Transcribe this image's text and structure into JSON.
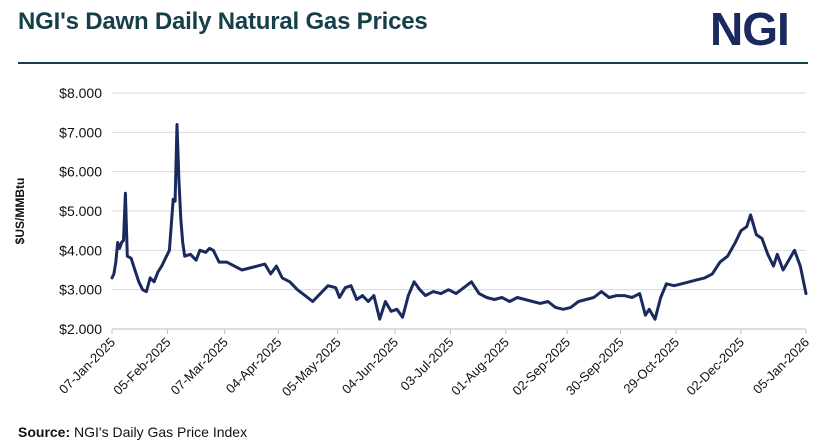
{
  "header": {
    "title": "NGI's Dawn Daily Natural Gas Prices",
    "logo_text": "NGI"
  },
  "footer": {
    "source_label": "Source:",
    "source_text": "NGI's Daily Gas Price Index"
  },
  "colors": {
    "title": "#163f4a",
    "logo": "#1a2a5e",
    "line": "#1a2a5e",
    "grid": "#d9d9d9"
  },
  "chart_data": {
    "type": "line",
    "title": "NGI's Dawn Daily Natural Gas Prices",
    "ylabel": "$US/MMBtu",
    "xlabel": "",
    "ylim": [
      2.0,
      8.0
    ],
    "grid": true,
    "y_ticks": [
      "$2.000",
      "$3.000",
      "$4.000",
      "$5.000",
      "$6.000",
      "$7.000",
      "$8.000"
    ],
    "y_tick_values": [
      2,
      3,
      4,
      5,
      6,
      7,
      8
    ],
    "x_ticks": [
      "07-Jan-2025",
      "05-Feb-2025",
      "07-Mar-2025",
      "04-Apr-2025",
      "05-May-2025",
      "04-Jun-2025",
      "03-Jul-2025",
      "01-Aug-2025",
      "02-Sep-2025",
      "30-Sep-2025",
      "29-Oct-2025",
      "02-Dec-2025",
      "05-Jan-2026"
    ],
    "x_tick_dates": [
      "2025-01-07",
      "2025-02-05",
      "2025-03-07",
      "2025-04-04",
      "2025-05-05",
      "2025-06-04",
      "2025-07-03",
      "2025-08-01",
      "2025-09-02",
      "2025-09-30",
      "2025-10-29",
      "2025-12-02",
      "2026-01-05"
    ],
    "series": [
      {
        "name": "",
        "color": "#1a2a5e",
        "points": [
          [
            "2025-01-07",
            3.3
          ],
          [
            "2025-01-08",
            3.4
          ],
          [
            "2025-01-09",
            3.7
          ],
          [
            "2025-01-10",
            4.2
          ],
          [
            "2025-01-11",
            4.05
          ],
          [
            "2025-01-12",
            4.2
          ],
          [
            "2025-01-13",
            4.25
          ],
          [
            "2025-01-14",
            5.45
          ],
          [
            "2025-01-15",
            3.85
          ],
          [
            "2025-01-17",
            3.8
          ],
          [
            "2025-01-19",
            3.5
          ],
          [
            "2025-01-21",
            3.2
          ],
          [
            "2025-01-23",
            3.0
          ],
          [
            "2025-01-25",
            2.95
          ],
          [
            "2025-01-27",
            3.3
          ],
          [
            "2025-01-29",
            3.2
          ],
          [
            "2025-01-31",
            3.45
          ],
          [
            "2025-02-02",
            3.6
          ],
          [
            "2025-02-04",
            3.8
          ],
          [
            "2025-02-06",
            4.0
          ],
          [
            "2025-02-08",
            5.3
          ],
          [
            "2025-02-09",
            5.25
          ],
          [
            "2025-02-10",
            7.2
          ],
          [
            "2025-02-11",
            5.8
          ],
          [
            "2025-02-12",
            4.8
          ],
          [
            "2025-02-13",
            4.2
          ],
          [
            "2025-02-14",
            3.85
          ],
          [
            "2025-02-17",
            3.9
          ],
          [
            "2025-02-20",
            3.75
          ],
          [
            "2025-02-22",
            4.0
          ],
          [
            "2025-02-25",
            3.95
          ],
          [
            "2025-02-27",
            4.05
          ],
          [
            "2025-03-01",
            4.0
          ],
          [
            "2025-03-04",
            3.7
          ],
          [
            "2025-03-08",
            3.7
          ],
          [
            "2025-03-12",
            3.6
          ],
          [
            "2025-03-16",
            3.5
          ],
          [
            "2025-03-20",
            3.55
          ],
          [
            "2025-03-24",
            3.6
          ],
          [
            "2025-03-28",
            3.65
          ],
          [
            "2025-03-31",
            3.4
          ],
          [
            "2025-04-03",
            3.6
          ],
          [
            "2025-04-06",
            3.3
          ],
          [
            "2025-04-10",
            3.2
          ],
          [
            "2025-04-14",
            3.0
          ],
          [
            "2025-04-18",
            2.85
          ],
          [
            "2025-04-22",
            2.7
          ],
          [
            "2025-04-26",
            2.9
          ],
          [
            "2025-04-30",
            3.1
          ],
          [
            "2025-05-04",
            3.05
          ],
          [
            "2025-05-06",
            2.8
          ],
          [
            "2025-05-09",
            3.05
          ],
          [
            "2025-05-12",
            3.1
          ],
          [
            "2025-05-15",
            2.75
          ],
          [
            "2025-05-18",
            2.85
          ],
          [
            "2025-05-21",
            2.7
          ],
          [
            "2025-05-24",
            2.85
          ],
          [
            "2025-05-27",
            2.25
          ],
          [
            "2025-05-30",
            2.7
          ],
          [
            "2025-06-02",
            2.45
          ],
          [
            "2025-06-05",
            2.5
          ],
          [
            "2025-06-08",
            2.3
          ],
          [
            "2025-06-11",
            2.85
          ],
          [
            "2025-06-14",
            3.2
          ],
          [
            "2025-06-17",
            3.0
          ],
          [
            "2025-06-20",
            2.85
          ],
          [
            "2025-06-24",
            2.95
          ],
          [
            "2025-06-28",
            2.9
          ],
          [
            "2025-07-02",
            3.0
          ],
          [
            "2025-07-06",
            2.9
          ],
          [
            "2025-07-10",
            3.05
          ],
          [
            "2025-07-14",
            3.2
          ],
          [
            "2025-07-18",
            2.9
          ],
          [
            "2025-07-22",
            2.8
          ],
          [
            "2025-07-26",
            2.75
          ],
          [
            "2025-07-30",
            2.8
          ],
          [
            "2025-08-03",
            2.7
          ],
          [
            "2025-08-07",
            2.8
          ],
          [
            "2025-08-11",
            2.75
          ],
          [
            "2025-08-15",
            2.7
          ],
          [
            "2025-08-19",
            2.65
          ],
          [
            "2025-08-23",
            2.7
          ],
          [
            "2025-08-27",
            2.55
          ],
          [
            "2025-08-31",
            2.5
          ],
          [
            "2025-09-04",
            2.55
          ],
          [
            "2025-09-08",
            2.7
          ],
          [
            "2025-09-12",
            2.75
          ],
          [
            "2025-09-16",
            2.8
          ],
          [
            "2025-09-20",
            2.95
          ],
          [
            "2025-09-24",
            2.8
          ],
          [
            "2025-09-28",
            2.85
          ],
          [
            "2025-10-02",
            2.85
          ],
          [
            "2025-10-06",
            2.8
          ],
          [
            "2025-10-10",
            2.9
          ],
          [
            "2025-10-13",
            2.35
          ],
          [
            "2025-10-15",
            2.5
          ],
          [
            "2025-10-18",
            2.25
          ],
          [
            "2025-10-21",
            2.8
          ],
          [
            "2025-10-24",
            3.15
          ],
          [
            "2025-10-28",
            3.1
          ],
          [
            "2025-11-01",
            3.15
          ],
          [
            "2025-11-05",
            3.2
          ],
          [
            "2025-11-09",
            3.25
          ],
          [
            "2025-11-13",
            3.3
          ],
          [
            "2025-11-17",
            3.4
          ],
          [
            "2025-11-21",
            3.7
          ],
          [
            "2025-11-25",
            3.85
          ],
          [
            "2025-11-29",
            4.2
          ],
          [
            "2025-12-02",
            4.5
          ],
          [
            "2025-12-05",
            4.6
          ],
          [
            "2025-12-07",
            4.9
          ],
          [
            "2025-12-10",
            4.4
          ],
          [
            "2025-12-13",
            4.3
          ],
          [
            "2025-12-16",
            3.9
          ],
          [
            "2025-12-19",
            3.6
          ],
          [
            "2025-12-21",
            3.9
          ],
          [
            "2025-12-24",
            3.5
          ],
          [
            "2025-12-27",
            3.75
          ],
          [
            "2025-12-30",
            4.0
          ],
          [
            "2026-01-02",
            3.6
          ],
          [
            "2026-01-05",
            2.9
          ]
        ]
      }
    ]
  }
}
